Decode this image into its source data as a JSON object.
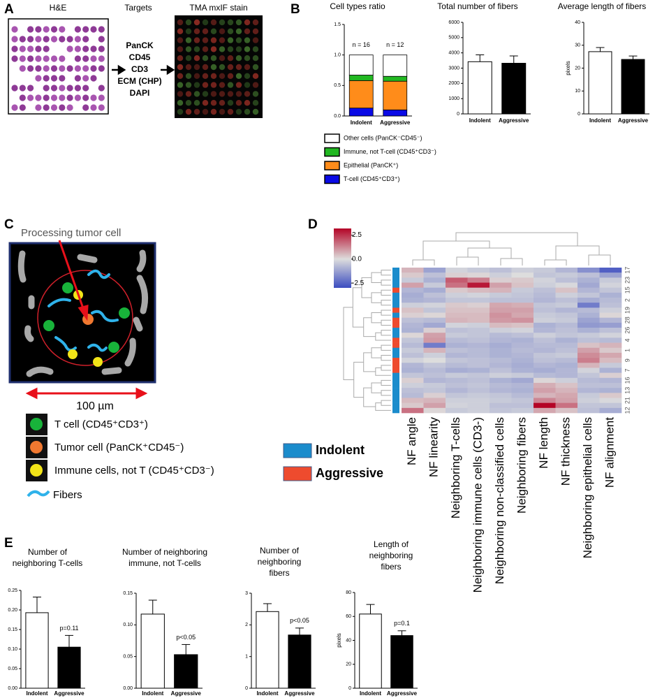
{
  "figure": {
    "panel_labels": [
      "A",
      "B",
      "C",
      "D",
      "E"
    ],
    "panel_a": {
      "he_title": "H&E",
      "targets_title": "Targets",
      "targets": [
        "PanCK",
        "CD45",
        "CD3",
        "ECM (CHP)",
        "DAPI"
      ],
      "stain_title": "TMA mxIF stain"
    },
    "panel_c": {
      "pointer_label": "Processing tumor cell",
      "scale_label": "100 µm",
      "legend": [
        "T cell (CD45⁺CD3⁺)",
        "Tumor cell (PanCK⁺CD45⁻)",
        "Immune cells, not T (CD45⁺CD3⁻)",
        "Fibers"
      ]
    }
  },
  "chart_data": [
    {
      "type": "stacked_bar",
      "title": [
        "Cell types ratio"
      ],
      "categories": [
        "Indolent",
        "Aggressive"
      ],
      "annotations": [
        "n = 16",
        "n = 12"
      ],
      "series": [
        {
          "name": "T-cell (CD45⁺CD3⁺)",
          "color": "#0a0ae6",
          "values": [
            0.13,
            0.1
          ]
        },
        {
          "name": "Epithelial (PanCK⁺)",
          "color": "#ff8c1a",
          "values": [
            0.45,
            0.47
          ]
        },
        {
          "name": "Immune, not T-cell (CD45⁺CD3⁻)",
          "color": "#22b822",
          "values": [
            0.09,
            0.08
          ]
        },
        {
          "name": "Other cells (PanCK⁻CD45⁻)",
          "color": "#ffffff",
          "values": [
            0.33,
            0.35
          ]
        }
      ],
      "ylim": [
        0,
        1.5
      ],
      "yticks": [
        {
          "value": 0,
          "label": "0.0"
        },
        {
          "value": 0.5,
          "label": "0.5"
        },
        {
          "value": 1,
          "label": "1.0"
        },
        1.5
      ]
    },
    {
      "type": "bar",
      "title": [
        "Total number of fibers"
      ],
      "categories": [
        "Indolent",
        "Aggressive"
      ],
      "values": [
        3420,
        3320
      ],
      "errors": [
        450,
        480
      ],
      "colors": [
        "#ffffff",
        "#000000"
      ],
      "ylim": [
        0,
        6000
      ],
      "yticks": [
        0,
        1000,
        2000,
        3000,
        4000,
        5000,
        6000
      ]
    },
    {
      "type": "bar",
      "title": [
        "Average length of fibers"
      ],
      "ylabel": "pixels",
      "categories": [
        "Indolent",
        "Aggressive"
      ],
      "values": [
        27.2,
        23.8
      ],
      "errors": [
        1.8,
        1.5
      ],
      "colors": [
        "#ffffff",
        "#000000"
      ],
      "ylim": [
        0,
        40
      ],
      "yticks": [
        0,
        10,
        20,
        30,
        40
      ]
    },
    {
      "type": "bar",
      "title": [
        "Number of",
        "neighboring T-cells"
      ],
      "categories": [
        "Indolent",
        "Aggressive"
      ],
      "values": [
        0.193,
        0.105
      ],
      "errors": [
        0.04,
        0.03
      ],
      "colors": [
        "#ffffff",
        "#000000"
      ],
      "annotation": "p=0.11",
      "ylim": [
        0,
        0.25
      ],
      "yticks": [
        {
          "value": 0,
          "label": "0.00"
        },
        0.05,
        {
          "value": 0.1,
          "label": "0.10"
        },
        0.15,
        {
          "value": 0.2,
          "label": "0.20"
        },
        0.25
      ]
    },
    {
      "type": "bar",
      "title": [
        "Number of neighboring",
        "immune, not T-cells"
      ],
      "categories": [
        "Indolent",
        "Aggressive"
      ],
      "values": [
        0.117,
        0.053
      ],
      "errors": [
        0.022,
        0.016
      ],
      "colors": [
        "#ffffff",
        "#000000"
      ],
      "annotation": "p<0.05",
      "ylim": [
        0,
        0.15
      ],
      "yticks": [
        {
          "value": 0,
          "label": "0.00"
        },
        0.05,
        {
          "value": 0.1,
          "label": "0.10"
        },
        0.15
      ]
    },
    {
      "type": "bar",
      "title": [
        "Number of",
        "neighboring",
        "fibers"
      ],
      "categories": [
        "Indolent",
        "Aggressive"
      ],
      "values": [
        2.42,
        1.68
      ],
      "errors": [
        0.25,
        0.22
      ],
      "colors": [
        "#ffffff",
        "#000000"
      ],
      "annotation": "p<0.05",
      "ylim": [
        0,
        3
      ],
      "yticks": [
        0,
        1,
        2,
        3
      ]
    },
    {
      "type": "bar",
      "title": [
        "Length of",
        "neighboring",
        "fibers"
      ],
      "ylabel": "pixels",
      "categories": [
        "Indolent",
        "Aggressive"
      ],
      "values": [
        62,
        44
      ],
      "errors": [
        8,
        4
      ],
      "colors": [
        "#ffffff",
        "#000000"
      ],
      "annotation": "p=0.1",
      "ylim": [
        0,
        80
      ],
      "yticks": [
        0,
        20,
        40,
        60,
        80
      ]
    },
    {
      "type": "heatmap",
      "columns": [
        "NF angle",
        "NF linearity",
        "Neighboring T-cells",
        "Neighboring immune cells (CD3-)",
        "Neighboring non-classified cells",
        "Neighboring fibers",
        "NF length",
        "NF thickness",
        "Neighboring epithelial cells",
        "NF alignment"
      ],
      "rows": [
        "17",
        null,
        "23",
        null,
        "15",
        null,
        "2",
        null,
        "19",
        null,
        "28",
        null,
        "26",
        null,
        "4",
        null,
        "1",
        null,
        "9",
        null,
        "7",
        null,
        "16",
        null,
        "13",
        null,
        "21",
        null,
        "12"
      ],
      "groups": [
        {
          "name": "Indolent",
          "color": "#1b8ccc"
        },
        {
          "name": "Aggressive",
          "color": "#ee4b2e"
        }
      ],
      "row_groups": [
        0,
        0,
        0,
        0,
        1,
        0,
        0,
        0,
        1,
        0,
        1,
        1,
        0,
        0,
        1,
        1,
        0,
        0,
        1,
        1,
        1,
        0,
        0,
        0,
        0,
        0,
        0,
        0,
        0
      ],
      "zlim": [
        -3,
        3.2
      ],
      "zticks": [
        2.5,
        {
          "value": 0,
          "label": "0.0"
        },
        -2.5
      ],
      "values": [
        [
          0.6,
          -1.2,
          -0.2,
          -0.4,
          -0.6,
          -0.3,
          -0.4,
          -0.8,
          -1.6,
          -2.6
        ],
        [
          0.3,
          -0.6,
          0.2,
          0.1,
          -0.3,
          0.0,
          -0.5,
          -0.4,
          -0.6,
          -1.2
        ],
        [
          -0.4,
          -0.9,
          1.9,
          1.4,
          0.2,
          0.3,
          -0.2,
          -0.6,
          -0.9,
          -0.4
        ],
        [
          0.9,
          -0.4,
          1.6,
          2.9,
          0.9,
          0.4,
          -0.3,
          -0.1,
          -1.1,
          -0.2
        ],
        [
          -0.8,
          -1.0,
          0.3,
          0.5,
          0.6,
          -0.4,
          -0.6,
          0.4,
          -0.8,
          -0.5
        ],
        [
          -1.0,
          -0.6,
          -0.3,
          -0.2,
          -0.4,
          -0.5,
          -0.7,
          -0.3,
          -0.5,
          -0.9
        ],
        [
          -0.9,
          -0.8,
          -0.5,
          -0.5,
          -0.6,
          -0.6,
          -0.8,
          -0.6,
          -1.0,
          -0.7
        ],
        [
          -0.3,
          -0.2,
          0.3,
          0.2,
          0.8,
          0.7,
          -0.5,
          -0.4,
          -2.0,
          -0.6
        ],
        [
          0.4,
          -0.5,
          0.4,
          0.4,
          0.9,
          0.9,
          -0.6,
          -0.8,
          -0.7,
          -0.3
        ],
        [
          0.2,
          0.1,
          0.5,
          0.5,
          1.1,
          0.8,
          -0.4,
          -0.5,
          -0.9,
          0.1
        ],
        [
          -0.6,
          -0.7,
          0.6,
          0.5,
          1.0,
          1.1,
          -0.3,
          -0.4,
          -1.2,
          -0.8
        ],
        [
          -0.8,
          -1.1,
          -0.2,
          -0.3,
          0.5,
          0.4,
          -0.9,
          -0.7,
          -1.4,
          -1.3
        ],
        [
          -0.9,
          0.2,
          -0.6,
          -0.5,
          -0.3,
          -0.2,
          -0.8,
          -0.6,
          -0.9,
          -0.6
        ],
        [
          0.1,
          0.9,
          -0.4,
          -0.5,
          -0.7,
          -0.6,
          -0.3,
          -0.5,
          -0.4,
          -0.2
        ],
        [
          -0.5,
          1.0,
          -0.7,
          -0.6,
          -0.8,
          -0.9,
          -0.6,
          -0.9,
          -0.6,
          -0.7
        ],
        [
          -0.7,
          -2.0,
          -0.9,
          -0.8,
          -1.0,
          -0.8,
          -0.7,
          -0.7,
          0.4,
          0.6
        ],
        [
          -0.4,
          0.6,
          -0.6,
          -0.7,
          -0.9,
          -0.7,
          -0.8,
          -0.6,
          0.9,
          0.3
        ],
        [
          -0.6,
          -0.3,
          -0.8,
          -0.7,
          -0.9,
          -0.8,
          -0.5,
          -0.4,
          1.2,
          0.8
        ],
        [
          -0.2,
          0.0,
          -0.5,
          -0.6,
          -0.7,
          -0.9,
          -0.6,
          -0.7,
          1.4,
          0.5
        ],
        [
          -0.8,
          -0.5,
          -0.7,
          -0.6,
          -0.8,
          -1.0,
          -0.8,
          -0.9,
          0.6,
          -0.4
        ],
        [
          -0.9,
          -0.7,
          -1.0,
          -0.9,
          -0.6,
          -0.9,
          -1.0,
          -0.8,
          -0.2,
          -0.9
        ],
        [
          -0.5,
          -0.6,
          -0.4,
          -0.5,
          -0.3,
          -0.4,
          -0.7,
          -0.8,
          -0.5,
          0.2
        ],
        [
          0.2,
          -0.8,
          -0.7,
          -0.6,
          -0.9,
          -1.1,
          0.1,
          -0.3,
          -0.7,
          -0.8
        ],
        [
          -0.3,
          -0.4,
          -0.6,
          -0.5,
          -0.7,
          -0.8,
          0.7,
          0.4,
          -0.6,
          -0.6
        ],
        [
          -0.6,
          -0.5,
          -0.8,
          -0.6,
          -0.8,
          -0.9,
          0.9,
          0.6,
          -0.8,
          -0.9
        ],
        [
          -0.7,
          0.2,
          -0.5,
          -0.4,
          -0.5,
          -0.7,
          0.6,
          0.8,
          -0.4,
          0.3
        ],
        [
          0.5,
          0.6,
          -0.3,
          -0.3,
          -0.4,
          -0.5,
          1.3,
          0.9,
          -0.3,
          -0.1
        ],
        [
          0.3,
          0.9,
          -0.2,
          -0.3,
          -0.6,
          -0.6,
          3.2,
          1.6,
          -0.5,
          -0.5
        ],
        [
          1.6,
          0.1,
          -0.4,
          -0.3,
          -0.5,
          -0.4,
          0.8,
          0.4,
          -0.6,
          -1.0
        ]
      ]
    }
  ]
}
